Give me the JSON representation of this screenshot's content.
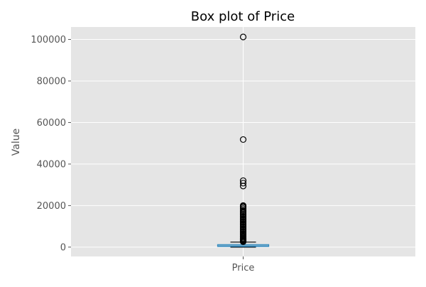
{
  "chart_data": {
    "type": "box",
    "title": "Box plot of Price",
    "xlabel": "",
    "ylabel": "Value",
    "categories": [
      "Price"
    ],
    "ylim": [
      -4500,
      106000
    ],
    "yticks": [
      0,
      20000,
      40000,
      60000,
      80000,
      100000
    ],
    "grid": true,
    "box": {
      "category": "Price",
      "whisker_low": 0,
      "q1": 300,
      "median": 650,
      "q3": 1200,
      "whisker_high": 2400,
      "outliers": [
        101200,
        51800,
        32000,
        30800,
        29400,
        20000,
        19600,
        19200,
        18500,
        17800,
        17200,
        16600,
        16000,
        15400,
        14800,
        14200,
        13600,
        13000,
        12400,
        11800,
        11200,
        10600,
        10000,
        9400,
        8800,
        8200,
        7600,
        7000,
        6400,
        5800,
        5300,
        4800,
        4300,
        3900,
        3500,
        3100,
        2800,
        2600
      ]
    },
    "colors": {
      "background": "#E5E5E5",
      "grid": "#FFFFFF",
      "box_edge": "#348ABD",
      "median": "#348ABD",
      "whisker": "#000000",
      "outlier_edge": "#000000",
      "text": "#555555",
      "title": "#000000"
    }
  }
}
